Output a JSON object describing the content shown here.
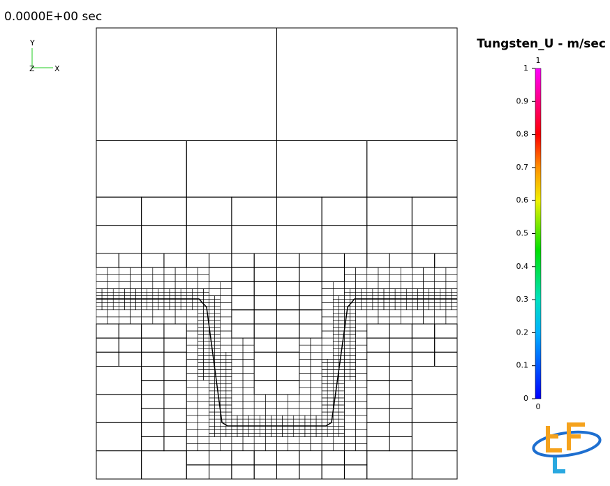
{
  "time_label": "0.0000E+00 sec",
  "axes": {
    "y": "Y",
    "z": "Z",
    "x": "X"
  },
  "colorbar": {
    "title": "Tungsten_U -  m/sec",
    "max_label": "1",
    "min_label": "0",
    "range": [
      0,
      1
    ],
    "ticks": [
      0,
      0.1,
      0.2,
      0.3,
      0.4,
      0.5,
      0.6,
      0.7,
      0.8,
      0.9,
      1
    ]
  }
}
